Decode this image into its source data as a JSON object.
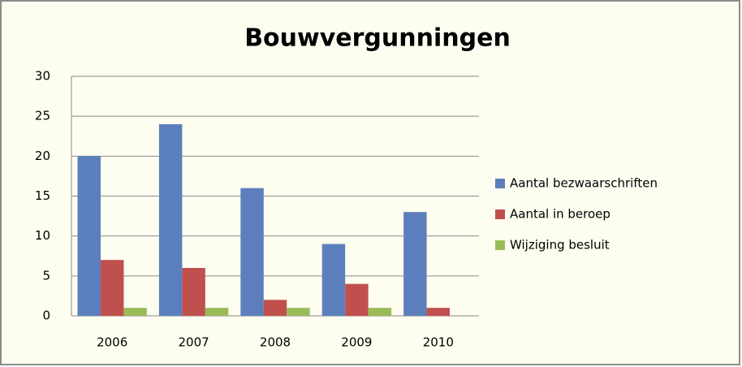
{
  "chart_data": {
    "type": "bar",
    "title": "Bouwvergunningen",
    "categories": [
      "2006",
      "2007",
      "2008",
      "2009",
      "2010"
    ],
    "series": [
      {
        "name": "Aantal bezwaarschriften",
        "color": "#5b7fbd",
        "values": [
          20,
          24,
          16,
          9,
          13
        ]
      },
      {
        "name": "Aantal in beroep",
        "color": "#c0504d",
        "values": [
          7,
          6,
          2,
          4,
          1
        ]
      },
      {
        "name": "Wijziging besluit",
        "color": "#9bbb59",
        "values": [
          1,
          1,
          1,
          1,
          0
        ]
      }
    ],
    "ylim": [
      0,
      30
    ],
    "yticks": [
      0,
      5,
      10,
      15,
      20,
      25,
      30
    ],
    "grid": true,
    "legend": "right"
  }
}
